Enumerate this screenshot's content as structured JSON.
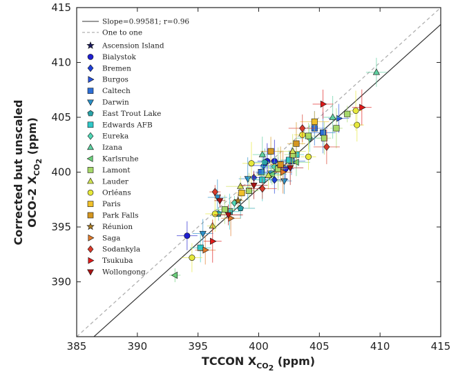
{
  "chart_data": {
    "type": "scatter",
    "xlabel": {
      "main": "TCCON X",
      "sub": "CO",
      "sub2": "2",
      "unit": " (ppm)"
    },
    "ylabel": {
      "line1": "Corrected but unscaled",
      "main": "OCO-2 X",
      "sub": "CO",
      "sub2": "2",
      "unit": " (ppm)"
    },
    "xlim": [
      385,
      415
    ],
    "ylim": [
      385,
      415
    ],
    "xticks": [
      "385",
      "390",
      "395",
      "400",
      "405",
      "410",
      "415"
    ],
    "yticks": [
      "390",
      "395",
      "400",
      "405",
      "410",
      "415"
    ],
    "grid": false,
    "legend_position": "top-left",
    "fit_line": {
      "label": "Slope=0.99581; r=0.96",
      "slope": 0.99581,
      "intercept": 0.2,
      "color": "#333333"
    },
    "one_to_one": {
      "label": "One to one",
      "color": "#b0b0b0"
    },
    "series": [
      {
        "name": "Ascension Island",
        "marker": "star",
        "color": "#1a1a5e",
        "points": []
      },
      {
        "name": "Bialystok",
        "marker": "circle",
        "color": "#1f1fd0",
        "points": [
          [
            394.1,
            394.2
          ],
          [
            400.7,
            401.0
          ],
          [
            401.3,
            401.0
          ],
          [
            402.2,
            400.3
          ]
        ]
      },
      {
        "name": "Bremen",
        "marker": "diamond",
        "color": "#1f3fd8",
        "points": [
          [
            399.6,
            399.5
          ],
          [
            400.4,
            400.6
          ],
          [
            401.3,
            399.3
          ]
        ]
      },
      {
        "name": "Burgos",
        "marker": "triangle-right",
        "color": "#2a55e0",
        "points": [
          [
            406.6,
            404.9
          ]
        ]
      },
      {
        "name": "Caltech",
        "marker": "square",
        "color": "#2d6fd6",
        "points": [
          [
            400.2,
            400.0
          ],
          [
            401.6,
            400.4
          ],
          [
            402.7,
            401.0
          ],
          [
            404.6,
            404.0
          ],
          [
            405.3,
            403.6
          ]
        ]
      },
      {
        "name": "Darwin",
        "marker": "triangle-down",
        "color": "#2b90c8",
        "points": [
          [
            395.4,
            394.4
          ],
          [
            396.6,
            397.7
          ],
          [
            399.1,
            399.4
          ],
          [
            401.0,
            399.9
          ],
          [
            402.1,
            399.2
          ]
        ]
      },
      {
        "name": "East Trout Lake",
        "marker": "pentagon",
        "color": "#2aa3a8",
        "points": [
          [
            396.7,
            396.2
          ],
          [
            398.5,
            396.7
          ],
          [
            400.5,
            400.9
          ]
        ]
      },
      {
        "name": "Edwards AFB",
        "marker": "square",
        "color": "#30c8c8",
        "points": [
          [
            395.2,
            393.1
          ],
          [
            397.6,
            396.4
          ],
          [
            400.3,
            399.3
          ],
          [
            402.5,
            401.1
          ],
          [
            403.1,
            401.6
          ]
        ]
      },
      {
        "name": "Eureka",
        "marker": "diamond",
        "color": "#4fd6b4",
        "points": [
          [
            398.0,
            397.2
          ],
          [
            401.3,
            400.5
          ],
          [
            404.2,
            403.1
          ]
        ]
      },
      {
        "name": "Izana",
        "marker": "triangle-up",
        "color": "#5ed0a0",
        "points": [
          [
            409.7,
            409.1
          ],
          [
            400.3,
            401.6
          ],
          [
            406.1,
            405.0
          ]
        ]
      },
      {
        "name": "Karlsruhe",
        "marker": "triangle-left",
        "color": "#6ad07a",
        "points": [
          [
            393.1,
            390.6
          ],
          [
            401.1,
            399.8
          ],
          [
            403.1,
            400.9
          ]
        ]
      },
      {
        "name": "Lamont",
        "marker": "square",
        "color": "#a6d86a",
        "points": [
          [
            397.2,
            396.6
          ],
          [
            399.2,
            398.3
          ],
          [
            401.6,
            400.3
          ],
          [
            402.8,
            401.6
          ],
          [
            404.1,
            403.3
          ],
          [
            405.4,
            403.1
          ],
          [
            406.4,
            404.0
          ],
          [
            407.3,
            405.3
          ]
        ]
      },
      {
        "name": "Lauder",
        "marker": "triangle-up",
        "color": "#cfe052",
        "points": [
          [
            396.2,
            395.1
          ],
          [
            398.5,
            398.7
          ],
          [
            400.8,
            399.7
          ],
          [
            402.8,
            401.9
          ]
        ]
      },
      {
        "name": "Orléans",
        "marker": "circle",
        "color": "#e6e83a",
        "points": [
          [
            394.5,
            392.2
          ],
          [
            396.4,
            396.2
          ],
          [
            399.4,
            400.8
          ],
          [
            403.6,
            403.4
          ],
          [
            404.1,
            401.4
          ],
          [
            408.1,
            404.3
          ],
          [
            408.0,
            405.6
          ]
        ]
      },
      {
        "name": "Paris",
        "marker": "square",
        "color": "#f0c02a",
        "points": [
          [
            398.6,
            398.1
          ],
          [
            404.6,
            404.6
          ]
        ]
      },
      {
        "name": "Park Falls",
        "marker": "square",
        "color": "#d49620",
        "points": [
          [
            401.0,
            401.9
          ],
          [
            401.8,
            400.7
          ],
          [
            403.1,
            402.6
          ]
        ]
      },
      {
        "name": "Réunion",
        "marker": "star",
        "color": "#a87a22",
        "points": [
          [
            398.3,
            397.4
          ]
        ]
      },
      {
        "name": "Saga",
        "marker": "triangle-right",
        "color": "#e07a2a",
        "points": [
          [
            395.6,
            392.9
          ],
          [
            397.7,
            395.8
          ],
          [
            402.0,
            400.0
          ]
        ]
      },
      {
        "name": "Sodankyla",
        "marker": "diamond",
        "color": "#d83a2a",
        "points": [
          [
            396.4,
            398.2
          ],
          [
            400.3,
            398.5
          ],
          [
            403.6,
            404.0
          ],
          [
            405.6,
            402.3
          ]
        ]
      },
      {
        "name": "Tsukuba",
        "marker": "triangle-right",
        "color": "#e01a1a",
        "points": [
          [
            405.3,
            406.2
          ],
          [
            408.5,
            405.9
          ],
          [
            396.2,
            393.7
          ]
        ]
      },
      {
        "name": "Wollongong",
        "marker": "triangle-down",
        "color": "#a81414",
        "points": [
          [
            396.8,
            397.4
          ],
          [
            397.5,
            396.1
          ],
          [
            399.6,
            398.8
          ],
          [
            402.6,
            400.4
          ]
        ]
      }
    ]
  }
}
